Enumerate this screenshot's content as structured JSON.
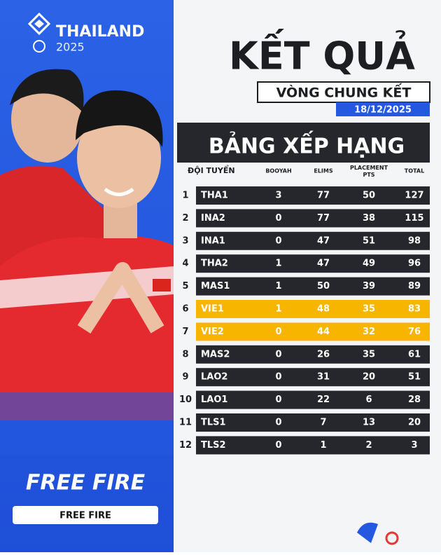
{
  "header": {
    "brand": "THAILAND",
    "year": "2025"
  },
  "game_logo": "FREE FIRE",
  "game_label": "FREE FIRE",
  "title": "KẾT QUẢ",
  "subtitle": "VÒNG CHUNG KẾT",
  "date": "18/12/2025",
  "table": {
    "title": "BẢNG XẾP HẠNG",
    "columns": [
      "ĐỘI TUYỂN",
      "BOOYAH",
      "ELIMS",
      "PLACEMENT PTS",
      "TOTAL"
    ],
    "highlight_ranks": [
      6,
      7
    ],
    "highlight_color": "#f7b500",
    "rows": [
      [
        1,
        "THA1",
        3,
        77,
        50,
        127
      ],
      [
        2,
        "INA2",
        0,
        77,
        38,
        115
      ],
      [
        3,
        "INA1",
        0,
        47,
        51,
        98
      ],
      [
        4,
        "THA2",
        1,
        47,
        49,
        96
      ],
      [
        5,
        "MAS1",
        1,
        50,
        39,
        89
      ],
      [
        6,
        "VIE1",
        1,
        48,
        35,
        83
      ],
      [
        7,
        "VIE2",
        0,
        44,
        32,
        76
      ],
      [
        8,
        "MAS2",
        0,
        26,
        35,
        61
      ],
      [
        9,
        "LAO2",
        0,
        31,
        20,
        51
      ],
      [
        10,
        "LAO1",
        0,
        22,
        6,
        28
      ],
      [
        11,
        "TLS1",
        0,
        7,
        13,
        20
      ],
      [
        12,
        "TLS2",
        0,
        1,
        2,
        3
      ]
    ]
  }
}
